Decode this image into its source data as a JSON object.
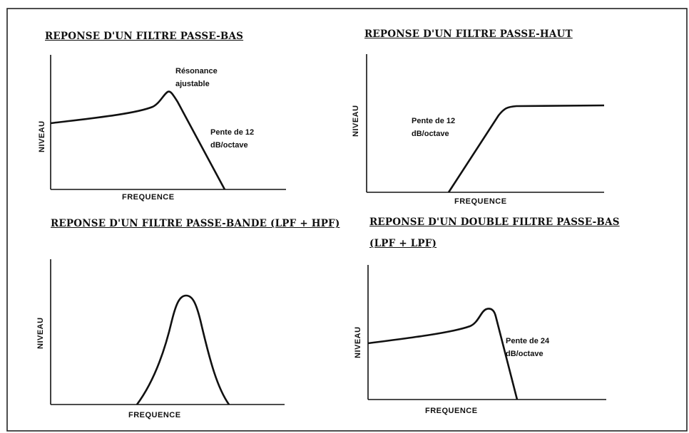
{
  "panels": [
    {
      "title": "REPONSE D'UN FILTRE PASSE-BAS",
      "xlabel": "FREQUENCE",
      "ylabel": "NIVEAU",
      "annotations": [
        {
          "line1": "Résonance",
          "line2": "ajustable"
        },
        {
          "line1": "Pente de 12",
          "line2": "dB/octave"
        }
      ]
    },
    {
      "title": "REPONSE D'UN FILTRE PASSE-HAUT",
      "xlabel": "FREQUENCE",
      "ylabel": "NIVEAU",
      "annotations": [
        {
          "line1": "Pente de 12",
          "line2": "dB/octave"
        }
      ]
    },
    {
      "title": "REPONSE D'UN FILTRE PASSE-BANDE (LPF + HPF)",
      "xlabel": "FREQUENCE",
      "ylabel": "NIVEAU",
      "annotations": []
    },
    {
      "title": "REPONSE D'UN DOUBLE FILTRE PASSE-BAS",
      "title_line2": "(LPF + LPF)",
      "xlabel": "FREQUENCE",
      "ylabel": "NIVEAU",
      "annotations": [
        {
          "line1": "Pente de 24",
          "line2": "dB/octave"
        }
      ]
    }
  ]
}
